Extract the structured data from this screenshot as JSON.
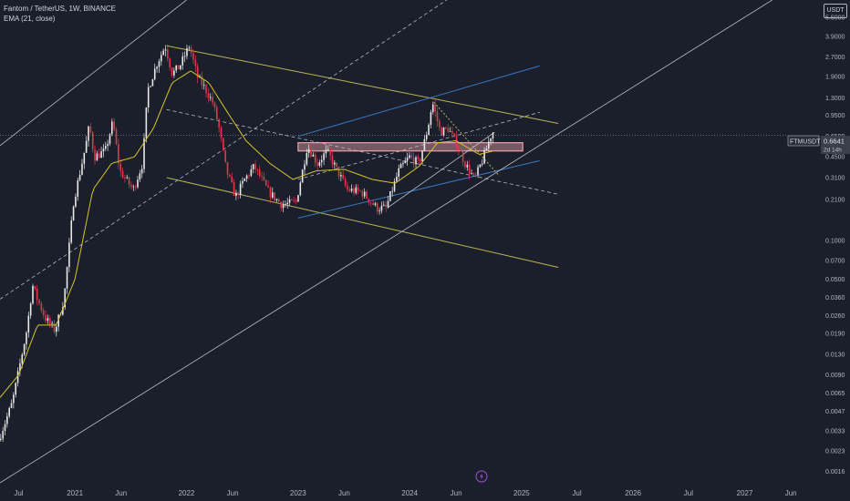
{
  "legend": {
    "symbol": "Fantom / TetherUS, 1W, BINANCE",
    "indicator": "EMA (21, close)"
  },
  "unit": "USDT",
  "price_tag": {
    "symbol": "FTMUSDT",
    "price": "0.6641",
    "countdown": "2d 14h"
  },
  "icons": {
    "replay": "lightning-icon"
  },
  "colors": {
    "background": "#1b1f2b",
    "up": "#e8e8e8",
    "down": "#e0394b",
    "ema": "#d6c42c",
    "channel_yellow": "#cfc35c",
    "channel_blue": "#3d7fd1",
    "channel_white": "#c7c9cf",
    "zone": "#e8a0ab"
  },
  "chart_data": {
    "type": "candlestick",
    "y_scale": "log",
    "ylim": [
      0.0013,
      7.5
    ],
    "yticks": [
      5.5,
      3.9,
      2.7,
      1.9,
      1.3,
      0.95,
      0.65,
      0.45,
      0.31,
      0.21,
      0.1,
      0.07,
      0.05,
      0.036,
      0.026,
      0.019,
      0.013,
      0.009,
      0.0065,
      0.0047,
      0.0033,
      0.0023,
      0.0016
    ],
    "ytick_labels": [
      "5.5000",
      "3.9000",
      "2.7000",
      "1.9000",
      "1.3000",
      "0.9500",
      "0.6500",
      "0.4500",
      "0.3100",
      "0.2100",
      "0.1000",
      "0.0700",
      "0.0500",
      "0.0360",
      "0.0260",
      "0.0190",
      "0.0130",
      "0.0090",
      "0.0065",
      "0.0047",
      "0.0033",
      "0.0023",
      "0.0016"
    ],
    "xlim": [
      "2020-05-01",
      "2027-09-01"
    ],
    "xticks": [
      {
        "date": "2020-07-01",
        "label": "Jul"
      },
      {
        "date": "2021-01-01",
        "label": "2021"
      },
      {
        "date": "2021-06-01",
        "label": "Jun"
      },
      {
        "date": "2022-01-01",
        "label": "2022"
      },
      {
        "date": "2022-06-01",
        "label": "Jun"
      },
      {
        "date": "2023-01-01",
        "label": "2023"
      },
      {
        "date": "2023-06-01",
        "label": "Jun"
      },
      {
        "date": "2024-01-01",
        "label": "2024"
      },
      {
        "date": "2024-06-01",
        "label": "Jun"
      },
      {
        "date": "2025-01-01",
        "label": "2025"
      },
      {
        "date": "2025-07-01",
        "label": "Jul"
      },
      {
        "date": "2026-01-01",
        "label": "2026"
      },
      {
        "date": "2026-07-01",
        "label": "Jul"
      },
      {
        "date": "2027-01-01",
        "label": "2027"
      },
      {
        "date": "2027-06-01",
        "label": "Jun"
      }
    ],
    "last_price": 0.6641,
    "price_path": [
      [
        "2020-05-01",
        0.0028
      ],
      [
        "2020-06-15",
        0.0055
      ],
      [
        "2020-08-01",
        0.02
      ],
      [
        "2020-08-20",
        0.045
      ],
      [
        "2020-09-05",
        0.035
      ],
      [
        "2020-10-01",
        0.025
      ],
      [
        "2020-11-01",
        0.02
      ],
      [
        "2020-12-01",
        0.035
      ],
      [
        "2021-01-01",
        0.2
      ],
      [
        "2021-02-10",
        0.55
      ],
      [
        "2021-02-22",
        0.8
      ],
      [
        "2021-03-10",
        0.45
      ],
      [
        "2021-04-15",
        0.5
      ],
      [
        "2021-05-10",
        0.85
      ],
      [
        "2021-06-01",
        0.35
      ],
      [
        "2021-07-15",
        0.25
      ],
      [
        "2021-08-15",
        0.4
      ],
      [
        "2021-09-01",
        1.5
      ],
      [
        "2021-10-01",
        2.4
      ],
      [
        "2021-10-28",
        3.3
      ],
      [
        "2021-11-20",
        2.0
      ],
      [
        "2021-12-15",
        2.3
      ],
      [
        "2022-01-15",
        3.3
      ],
      [
        "2022-02-10",
        1.9
      ],
      [
        "2022-03-10",
        1.5
      ],
      [
        "2022-04-01",
        1.2
      ],
      [
        "2022-04-20",
        0.8
      ],
      [
        "2022-05-15",
        0.36
      ],
      [
        "2022-06-15",
        0.22
      ],
      [
        "2022-07-15",
        0.3
      ],
      [
        "2022-08-15",
        0.38
      ],
      [
        "2022-10-01",
        0.24
      ],
      [
        "2022-11-15",
        0.19
      ],
      [
        "2022-12-30",
        0.2
      ],
      [
        "2023-01-20",
        0.35
      ],
      [
        "2023-02-05",
        0.55
      ],
      [
        "2023-03-10",
        0.4
      ],
      [
        "2023-04-10",
        0.5
      ],
      [
        "2023-05-20",
        0.33
      ],
      [
        "2023-06-15",
        0.25
      ],
      [
        "2023-08-01",
        0.24
      ],
      [
        "2023-09-20",
        0.18
      ],
      [
        "2023-10-20",
        0.18
      ],
      [
        "2023-12-01",
        0.35
      ],
      [
        "2024-01-05",
        0.45
      ],
      [
        "2024-02-05",
        0.4
      ],
      [
        "2024-03-05",
        0.75
      ],
      [
        "2024-03-20",
        1.2
      ],
      [
        "2024-04-15",
        0.7
      ],
      [
        "2024-05-10",
        0.75
      ],
      [
        "2024-06-10",
        0.55
      ],
      [
        "2024-07-05",
        0.4
      ],
      [
        "2024-08-05",
        0.3
      ],
      [
        "2024-08-30",
        0.42
      ],
      [
        "2024-10-01",
        0.7
      ]
    ],
    "ema21_path": [
      [
        "2020-05-01",
        0.006
      ],
      [
        "2020-07-01",
        0.009
      ],
      [
        "2020-09-01",
        0.022
      ],
      [
        "2020-11-01",
        0.022
      ],
      [
        "2021-01-01",
        0.05
      ],
      [
        "2021-03-01",
        0.25
      ],
      [
        "2021-05-01",
        0.4
      ],
      [
        "2021-07-15",
        0.45
      ],
      [
        "2021-09-15",
        0.75
      ],
      [
        "2021-11-15",
        1.7
      ],
      [
        "2022-01-15",
        2.1
      ],
      [
        "2022-03-15",
        1.7
      ],
      [
        "2022-05-15",
        1.0
      ],
      [
        "2022-07-15",
        0.6
      ],
      [
        "2022-10-01",
        0.4
      ],
      [
        "2022-12-15",
        0.3
      ],
      [
        "2023-03-01",
        0.35
      ],
      [
        "2023-06-01",
        0.36
      ],
      [
        "2023-09-01",
        0.3
      ],
      [
        "2023-11-15",
        0.28
      ],
      [
        "2024-02-01",
        0.38
      ],
      [
        "2024-04-01",
        0.58
      ],
      [
        "2024-06-01",
        0.6
      ],
      [
        "2024-08-15",
        0.47
      ],
      [
        "2024-10-01",
        0.5
      ]
    ],
    "annotations": [
      {
        "name": "descending-channel-upper",
        "style": "yellow",
        "from": [
          "2021-10-28",
          3.3
        ],
        "to": [
          "2025-05-01",
          0.82
        ]
      },
      {
        "name": "descending-channel-lower",
        "style": "yellow",
        "from": [
          "2021-10-28",
          0.31
        ],
        "to": [
          "2025-05-01",
          0.062
        ]
      },
      {
        "name": "descending-channel-mid",
        "style": "white-dashed",
        "from": [
          "2021-10-28",
          1.05
        ],
        "to": [
          "2025-05-01",
          0.23
        ]
      },
      {
        "name": "wedge-upper",
        "style": "blue",
        "from": [
          "2023-01-01",
          0.65
        ],
        "to": [
          "2025-03-01",
          2.3
        ]
      },
      {
        "name": "wedge-lower",
        "style": "blue",
        "from": [
          "2023-01-01",
          0.15
        ],
        "to": [
          "2025-03-01",
          0.42
        ]
      },
      {
        "name": "rising-channel-upper",
        "style": "white",
        "from": [
          "2020-05-01",
          0.55
        ],
        "to": [
          "2022-01-01",
          7.5
        ]
      },
      {
        "name": "rising-channel-lower",
        "style": "white",
        "from": [
          "2020-05-01",
          0.0013
        ],
        "to": [
          "2027-04-01",
          7.5
        ]
      },
      {
        "name": "rising-channel-mid",
        "style": "white-dashed",
        "from": [
          "2020-05-01",
          0.035
        ],
        "to": [
          "2024-05-01",
          7.5
        ]
      },
      {
        "name": "short-diagonal",
        "style": "white-dashed",
        "from": [
          "2023-01-01",
          0.3
        ],
        "to": [
          "2025-03-01",
          1.0
        ]
      },
      {
        "name": "recent-downtrend",
        "style": "yellow-dotted",
        "from": [
          "2024-03-20",
          1.2
        ],
        "to": [
          "2024-10-20",
          0.32
        ]
      },
      {
        "name": "breakout-trendline",
        "style": "white",
        "from": [
          "2023-10-20",
          0.18
        ],
        "to": [
          "2024-10-05",
          0.7
        ]
      }
    ],
    "zones": [
      {
        "name": "resistance-zone",
        "from": "2023-01-01",
        "to": "2025-01-05",
        "low": 0.5,
        "high": 0.58
      }
    ]
  }
}
